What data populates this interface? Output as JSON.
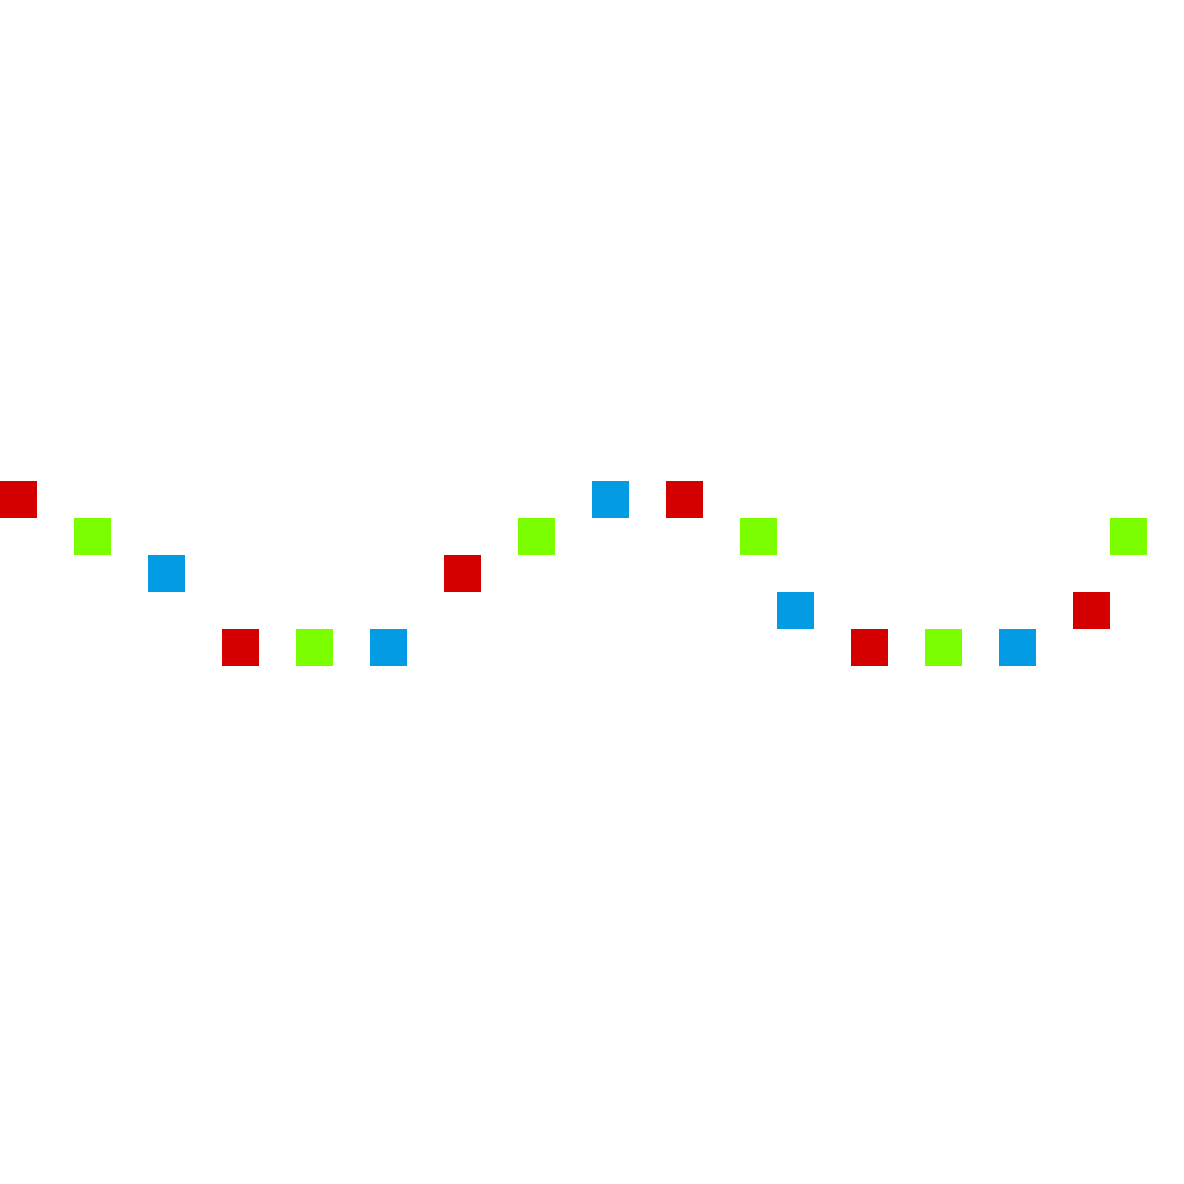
{
  "palette": {
    "background": "#ffffff",
    "red": "#d40000",
    "green": "#7bff00",
    "blue": "#039be4"
  },
  "pattern": {
    "description_shown": "",
    "tiles": [
      {
        "color": "red",
        "col": 0,
        "row": 13
      },
      {
        "color": "green",
        "col": 2,
        "row": 14
      },
      {
        "color": "blue",
        "col": 4,
        "row": 15
      },
      {
        "color": "red",
        "col": 6,
        "row": 17
      },
      {
        "color": "green",
        "col": 8,
        "row": 17
      },
      {
        "color": "blue",
        "col": 10,
        "row": 17
      },
      {
        "color": "red",
        "col": 12,
        "row": 15
      },
      {
        "color": "green",
        "col": 14,
        "row": 14
      },
      {
        "color": "blue",
        "col": 16,
        "row": 13
      },
      {
        "color": "red",
        "col": 18,
        "row": 13
      },
      {
        "color": "green",
        "col": 20,
        "row": 14
      },
      {
        "color": "blue",
        "col": 21,
        "row": 16
      },
      {
        "color": "red",
        "col": 23,
        "row": 17
      },
      {
        "color": "green",
        "col": 25,
        "row": 17
      },
      {
        "color": "blue",
        "col": 27,
        "row": 17
      },
      {
        "color": "red",
        "col": 29,
        "row": 16
      },
      {
        "color": "green",
        "col": 30,
        "row": 14
      }
    ]
  }
}
